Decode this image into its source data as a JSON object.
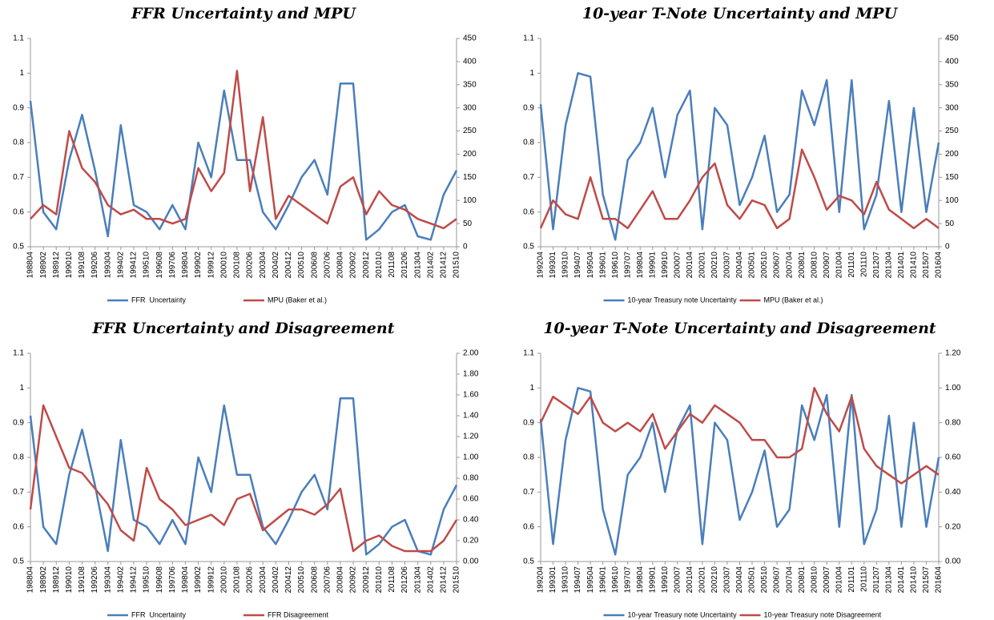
{
  "chart_data": [
    {
      "type": "line",
      "title": "FFR Uncertainty and MPU",
      "categories": [
        "198804",
        "198902",
        "198912",
        "199010",
        "199108",
        "199206",
        "199304",
        "199402",
        "199412",
        "199510",
        "199608",
        "199706",
        "199804",
        "199902",
        "199912",
        "200010",
        "200108",
        "200206",
        "200304",
        "200402",
        "200412",
        "200510",
        "200608",
        "200706",
        "200804",
        "200902",
        "200912",
        "201010",
        "201108",
        "201206",
        "201304",
        "201402",
        "201412",
        "201510"
      ],
      "series": [
        {
          "name": "FFR  Uncertainty",
          "color": "#4a7ebb",
          "values": [
            0.92,
            0.6,
            0.55,
            0.75,
            0.88,
            0.72,
            0.53,
            0.85,
            0.62,
            0.6,
            0.55,
            0.62,
            0.55,
            0.8,
            0.7,
            0.95,
            0.75,
            0.75,
            0.6,
            0.55,
            0.62,
            0.7,
            0.75,
            0.65,
            0.97,
            0.97,
            0.52,
            0.55,
            0.6,
            0.62,
            0.53,
            0.52,
            0.65,
            0.72
          ]
        },
        {
          "name": "MPU (Baker et al.)",
          "color": "#be4b48",
          "axis": "y2",
          "values": [
            60,
            90,
            70,
            250,
            170,
            140,
            90,
            70,
            80,
            60,
            60,
            50,
            60,
            170,
            120,
            160,
            380,
            120,
            280,
            60,
            110,
            90,
            70,
            50,
            130,
            150,
            70,
            120,
            90,
            80,
            60,
            50,
            40,
            60
          ]
        }
      ],
      "ylim": [
        0.5,
        1.1
      ],
      "yticks": [
        0.5,
        0.6,
        0.7,
        0.8,
        0.9,
        1,
        1.1
      ],
      "y2lim": [
        0,
        450
      ],
      "y2ticks": [
        0,
        50,
        100,
        150,
        200,
        250,
        300,
        350,
        400,
        450
      ],
      "legend": "bottom"
    },
    {
      "type": "line",
      "title": "10-year T-Note Uncertainty and MPU",
      "categories": [
        "199204",
        "199301",
        "199310",
        "199407",
        "199504",
        "199601",
        "199610",
        "199707",
        "199804",
        "199901",
        "199910",
        "200007",
        "200104",
        "200201",
        "200210",
        "200307",
        "200404",
        "200501",
        "200510",
        "200607",
        "200704",
        "200801",
        "200810",
        "200907",
        "201004",
        "201101",
        "201110",
        "201207",
        "201304",
        "201401",
        "201410",
        "201507",
        "201604"
      ],
      "series": [
        {
          "name": "10-year Treasury note Uncertainty",
          "color": "#4a7ebb",
          "values": [
            0.91,
            0.55,
            0.85,
            1.0,
            0.99,
            0.65,
            0.52,
            0.75,
            0.8,
            0.9,
            0.7,
            0.88,
            0.95,
            0.55,
            0.9,
            0.85,
            0.62,
            0.7,
            0.82,
            0.6,
            0.65,
            0.95,
            0.85,
            0.98,
            0.6,
            0.98,
            0.55,
            0.65,
            0.92,
            0.6,
            0.9,
            0.6,
            0.8
          ]
        },
        {
          "name": "MPU (Baker et al.)",
          "color": "#be4b48",
          "axis": "y2",
          "values": [
            40,
            100,
            70,
            60,
            150,
            60,
            60,
            40,
            80,
            120,
            60,
            60,
            100,
            150,
            180,
            90,
            60,
            100,
            90,
            40,
            60,
            210,
            150,
            80,
            110,
            100,
            70,
            140,
            80,
            60,
            40,
            60,
            40
          ]
        }
      ],
      "ylim": [
        0.5,
        1.1
      ],
      "yticks": [
        0.5,
        0.6,
        0.7,
        0.8,
        0.9,
        1,
        1.1
      ],
      "y2lim": [
        0,
        450
      ],
      "y2ticks": [
        0,
        50,
        100,
        150,
        200,
        250,
        300,
        350,
        400,
        450
      ],
      "legend": "bottom"
    },
    {
      "type": "line",
      "title": "FFR Uncertainty and Disagreement",
      "categories": [
        "198804",
        "198902",
        "198912",
        "199010",
        "199108",
        "199206",
        "199304",
        "199402",
        "199412",
        "199510",
        "199608",
        "199706",
        "199804",
        "199902",
        "199912",
        "200010",
        "200108",
        "200206",
        "200304",
        "200402",
        "200412",
        "200510",
        "200608",
        "200706",
        "200804",
        "200902",
        "200912",
        "201010",
        "201108",
        "201206",
        "201304",
        "201402",
        "201412",
        "201510"
      ],
      "series": [
        {
          "name": "FFR  Uncertainty",
          "color": "#4a7ebb",
          "values": [
            0.92,
            0.6,
            0.55,
            0.75,
            0.88,
            0.72,
            0.53,
            0.85,
            0.62,
            0.6,
            0.55,
            0.62,
            0.55,
            0.8,
            0.7,
            0.95,
            0.75,
            0.75,
            0.6,
            0.55,
            0.62,
            0.7,
            0.75,
            0.65,
            0.97,
            0.97,
            0.52,
            0.55,
            0.6,
            0.62,
            0.53,
            0.52,
            0.65,
            0.72
          ]
        },
        {
          "name": "FFR Disagreement",
          "color": "#be4b48",
          "axis": "y2",
          "values": [
            0.5,
            1.5,
            1.2,
            0.9,
            0.85,
            0.7,
            0.55,
            0.3,
            0.2,
            0.9,
            0.6,
            0.5,
            0.35,
            0.4,
            0.45,
            0.35,
            0.6,
            0.65,
            0.3,
            0.4,
            0.5,
            0.5,
            0.45,
            0.55,
            0.7,
            0.1,
            0.2,
            0.25,
            0.15,
            0.1,
            0.1,
            0.1,
            0.2,
            0.4
          ]
        }
      ],
      "ylim": [
        0.5,
        1.1
      ],
      "yticks": [
        0.5,
        0.6,
        0.7,
        0.8,
        0.9,
        1,
        1.1
      ],
      "y2lim": [
        0,
        2
      ],
      "y2ticks": [
        {
          "value": 0,
          "label": "0.00"
        },
        {
          "value": 0.2,
          "label": "0.20"
        },
        {
          "value": 0.4,
          "label": "0.40"
        },
        {
          "value": 0.6,
          "label": "0.60"
        },
        {
          "value": 0.8,
          "label": "0.80"
        },
        {
          "value": 1,
          "label": "1.00"
        },
        {
          "value": 1.2,
          "label": "1.20"
        },
        {
          "value": 1.4,
          "label": "1.40"
        },
        {
          "value": 1.6,
          "label": "1.60"
        },
        {
          "value": 1.8,
          "label": "1.80"
        },
        {
          "value": 2,
          "label": "2.00"
        }
      ],
      "legend": "bottom"
    },
    {
      "type": "line",
      "title": "10-year T-Note Uncertainty and Disagreement",
      "categories": [
        "199204",
        "199301",
        "199310",
        "199407",
        "199504",
        "199601",
        "199610",
        "199707",
        "199804",
        "199901",
        "199910",
        "200007",
        "200104",
        "200201",
        "200210",
        "200307",
        "200404",
        "200501",
        "200510",
        "200607",
        "200704",
        "200801",
        "200810",
        "200907",
        "201004",
        "201101",
        "201110",
        "201207",
        "201304",
        "201401",
        "201410",
        "201507",
        "201604"
      ],
      "series": [
        {
          "name": "10-year Treasury note Uncertainty",
          "color": "#4a7ebb",
          "values": [
            0.91,
            0.55,
            0.85,
            1.0,
            0.99,
            0.65,
            0.52,
            0.75,
            0.8,
            0.9,
            0.7,
            0.88,
            0.95,
            0.55,
            0.9,
            0.85,
            0.62,
            0.7,
            0.82,
            0.6,
            0.65,
            0.95,
            0.85,
            0.98,
            0.6,
            0.98,
            0.55,
            0.65,
            0.92,
            0.6,
            0.9,
            0.6,
            0.8
          ]
        },
        {
          "name": "10-year Treasury note Disagreement",
          "color": "#be4b48",
          "axis": "y2",
          "values": [
            0.8,
            0.95,
            0.9,
            0.85,
            0.95,
            0.8,
            0.75,
            0.8,
            0.75,
            0.85,
            0.65,
            0.75,
            0.85,
            0.8,
            0.9,
            0.85,
            0.8,
            0.7,
            0.7,
            0.6,
            0.6,
            0.65,
            1.0,
            0.85,
            0.75,
            0.95,
            0.65,
            0.55,
            0.5,
            0.45,
            0.5,
            0.55,
            0.5
          ]
        }
      ],
      "ylim": [
        0.5,
        1.1
      ],
      "yticks": [
        0.5,
        0.6,
        0.7,
        0.8,
        0.9,
        1,
        1.1
      ],
      "y2lim": [
        0,
        1.2
      ],
      "y2ticks": [
        {
          "value": 0,
          "label": "0.00"
        },
        {
          "value": 0.2,
          "label": "0.20"
        },
        {
          "value": 0.4,
          "label": "0.40"
        },
        {
          "value": 0.6,
          "label": "0.60"
        },
        {
          "value": 0.8,
          "label": "0.80"
        },
        {
          "value": 1,
          "label": "1.00"
        },
        {
          "value": 1.2,
          "label": "1.20"
        }
      ],
      "legend": "bottom"
    }
  ]
}
